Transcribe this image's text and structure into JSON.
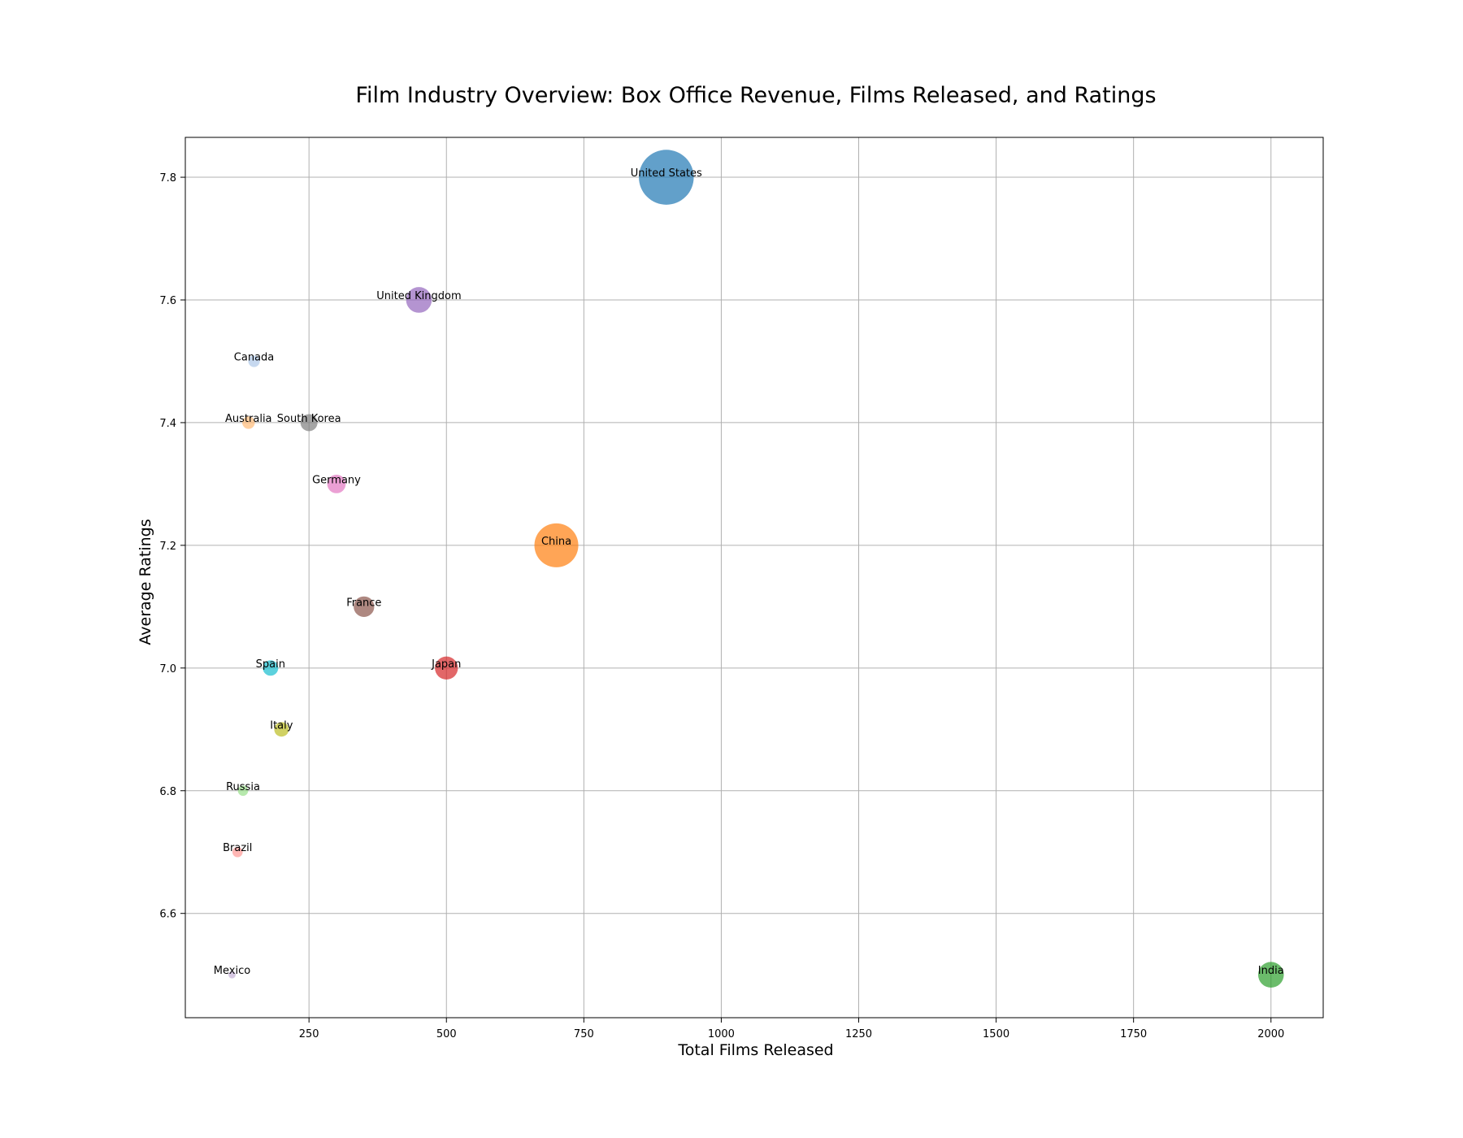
{
  "chart_data": {
    "type": "scatter",
    "title": "Film Industry Overview: Box Office Revenue, Films Released, and Ratings",
    "xlabel": "Total Films Released",
    "ylabel": "Average Ratings",
    "xlim": [
      25,
      2095
    ],
    "ylim": [
      6.43,
      7.865
    ],
    "xticks": [
      250,
      500,
      750,
      1000,
      1250,
      1500,
      1750,
      2000
    ],
    "yticks": [
      6.6,
      6.8,
      7.0,
      7.2,
      7.4,
      7.6,
      7.8
    ],
    "grid": true,
    "points": [
      {
        "label": "United States",
        "x": 900,
        "y": 7.8,
        "size": 11.4,
        "color": "#1f77b4"
      },
      {
        "label": "China",
        "x": 700,
        "y": 7.2,
        "size": 7.3,
        "color": "#ff7f0e"
      },
      {
        "label": "India",
        "x": 2000,
        "y": 6.5,
        "size": 2.5,
        "color": "#2ca02c"
      },
      {
        "label": "Japan",
        "x": 500,
        "y": 7.0,
        "size": 2.0,
        "color": "#d62728"
      },
      {
        "label": "United Kingdom",
        "x": 450,
        "y": 7.6,
        "size": 2.5,
        "color": "#9467bd"
      },
      {
        "label": "France",
        "x": 350,
        "y": 7.1,
        "size": 1.6,
        "color": "#8c564b"
      },
      {
        "label": "Germany",
        "x": 300,
        "y": 7.3,
        "size": 1.3,
        "color": "#e377c2"
      },
      {
        "label": "South Korea",
        "x": 250,
        "y": 7.4,
        "size": 1.1,
        "color": "#7f7f7f"
      },
      {
        "label": "Italy",
        "x": 200,
        "y": 6.9,
        "size": 0.8,
        "color": "#bcbd22"
      },
      {
        "label": "Spain",
        "x": 180,
        "y": 7.0,
        "size": 0.9,
        "color": "#17becf"
      },
      {
        "label": "Canada",
        "x": 150,
        "y": 7.5,
        "size": 0.5,
        "color": "#aec7e8"
      },
      {
        "label": "Australia",
        "x": 140,
        "y": 7.4,
        "size": 0.6,
        "color": "#ffbb78"
      },
      {
        "label": "Russia",
        "x": 130,
        "y": 6.8,
        "size": 0.4,
        "color": "#98df8a"
      },
      {
        "label": "Brazil",
        "x": 120,
        "y": 6.7,
        "size": 0.4,
        "color": "#ff9896"
      },
      {
        "label": "Mexico",
        "x": 110,
        "y": 6.5,
        "size": 0.2,
        "color": "#c5b0d5"
      }
    ]
  }
}
